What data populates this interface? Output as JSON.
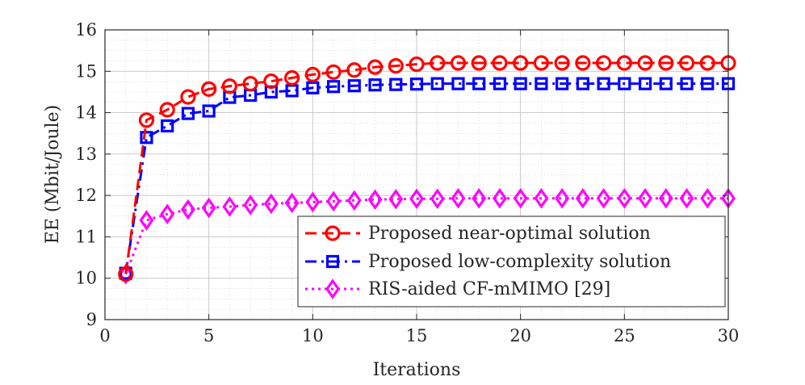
{
  "chart_data": {
    "type": "line",
    "title": "",
    "xlabel": "Iterations",
    "ylabel": "EE (Mbit/Joule)",
    "xlim": [
      0,
      30
    ],
    "ylim": [
      9,
      16
    ],
    "xticks": [
      0,
      5,
      10,
      15,
      20,
      25,
      30
    ],
    "yticks": [
      9,
      10,
      11,
      12,
      13,
      14,
      15,
      16
    ],
    "grid": true,
    "minor_grid": true,
    "legend_position": "bottom-right",
    "x": [
      1,
      2,
      3,
      4,
      5,
      6,
      7,
      8,
      9,
      10,
      11,
      12,
      13,
      14,
      15,
      16,
      17,
      18,
      19,
      20,
      21,
      22,
      23,
      24,
      25,
      26,
      27,
      28,
      29,
      30
    ],
    "series": [
      {
        "name": "Proposed near-optimal solution",
        "color": "#ff0000",
        "line_style": "dashed",
        "marker": "circle",
        "values": [
          10.1,
          13.82,
          14.07,
          14.38,
          14.57,
          14.64,
          14.7,
          14.76,
          14.84,
          14.92,
          14.98,
          15.03,
          15.1,
          15.13,
          15.17,
          15.2,
          15.2,
          15.2,
          15.2,
          15.2,
          15.2,
          15.2,
          15.2,
          15.2,
          15.2,
          15.2,
          15.2,
          15.2,
          15.2,
          15.2
        ]
      },
      {
        "name": "Proposed low-complexity solution",
        "color": "#0000ff",
        "line_style": "dashdot",
        "marker": "square",
        "values": [
          10.12,
          13.4,
          13.68,
          13.98,
          14.04,
          14.37,
          14.42,
          14.5,
          14.53,
          14.6,
          14.63,
          14.65,
          14.67,
          14.68,
          14.69,
          14.7,
          14.7,
          14.7,
          14.7,
          14.7,
          14.7,
          14.7,
          14.7,
          14.7,
          14.7,
          14.7,
          14.7,
          14.7,
          14.7,
          14.7
        ]
      },
      {
        "name": "RIS-aided CF-mMIMO [29]",
        "color": "#ff00ff",
        "line_style": "dotted",
        "marker": "diamond",
        "values": [
          10.1,
          11.4,
          11.55,
          11.66,
          11.7,
          11.73,
          11.77,
          11.8,
          11.82,
          11.84,
          11.86,
          11.88,
          11.9,
          11.91,
          11.92,
          11.92,
          11.93,
          11.93,
          11.93,
          11.93,
          11.93,
          11.93,
          11.93,
          11.93,
          11.93,
          11.93,
          11.93,
          11.93,
          11.93,
          11.93
        ]
      }
    ]
  }
}
